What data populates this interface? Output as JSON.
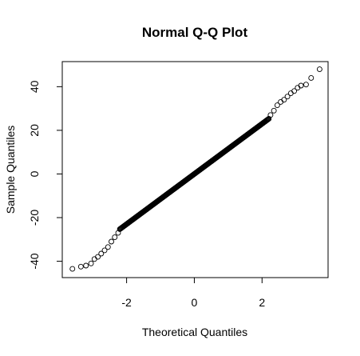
{
  "chart_data": {
    "type": "scatter",
    "title": "Normal Q-Q Plot",
    "xlabel": "Theoretical Quantiles",
    "ylabel": "Sample Quantiles",
    "xlim": [
      -3.9,
      3.95
    ],
    "ylim": [
      -47.5,
      51.5
    ],
    "x_ticks": [
      -2,
      0,
      2
    ],
    "y_ticks": [
      -40,
      -20,
      0,
      20,
      40
    ],
    "grid": false,
    "legend": "none",
    "marker": "open-circle",
    "point_color": "#000000",
    "trend": {
      "slope": 11.5,
      "intercept": 0.0,
      "x_range": [
        -2.2,
        2.2
      ]
    },
    "extreme_points": [
      {
        "x": -3.6,
        "y": -43.5
      },
      {
        "x": -3.35,
        "y": -42.5
      },
      {
        "x": -3.2,
        "y": -42.0
      },
      {
        "x": -3.05,
        "y": -41.0
      },
      {
        "x": -2.95,
        "y": -39.0
      },
      {
        "x": -2.85,
        "y": -38.0
      },
      {
        "x": -2.75,
        "y": -36.5
      },
      {
        "x": -2.65,
        "y": -35.0
      },
      {
        "x": -2.55,
        "y": -33.5
      },
      {
        "x": -2.45,
        "y": -31.0
      },
      {
        "x": -2.35,
        "y": -29.0
      },
      {
        "x": -2.25,
        "y": -27.0
      },
      {
        "x": 2.25,
        "y": 27.0
      },
      {
        "x": 2.35,
        "y": 29.0
      },
      {
        "x": 2.45,
        "y": 31.5
      },
      {
        "x": 2.55,
        "y": 33.0
      },
      {
        "x": 2.65,
        "y": 34.0
      },
      {
        "x": 2.75,
        "y": 35.5
      },
      {
        "x": 2.85,
        "y": 37.0
      },
      {
        "x": 2.95,
        "y": 38.0
      },
      {
        "x": 3.05,
        "y": 39.5
      },
      {
        "x": 3.15,
        "y": 40.5
      },
      {
        "x": 3.3,
        "y": 41.0
      },
      {
        "x": 3.45,
        "y": 44.0
      },
      {
        "x": 3.7,
        "y": 48.0
      }
    ]
  }
}
